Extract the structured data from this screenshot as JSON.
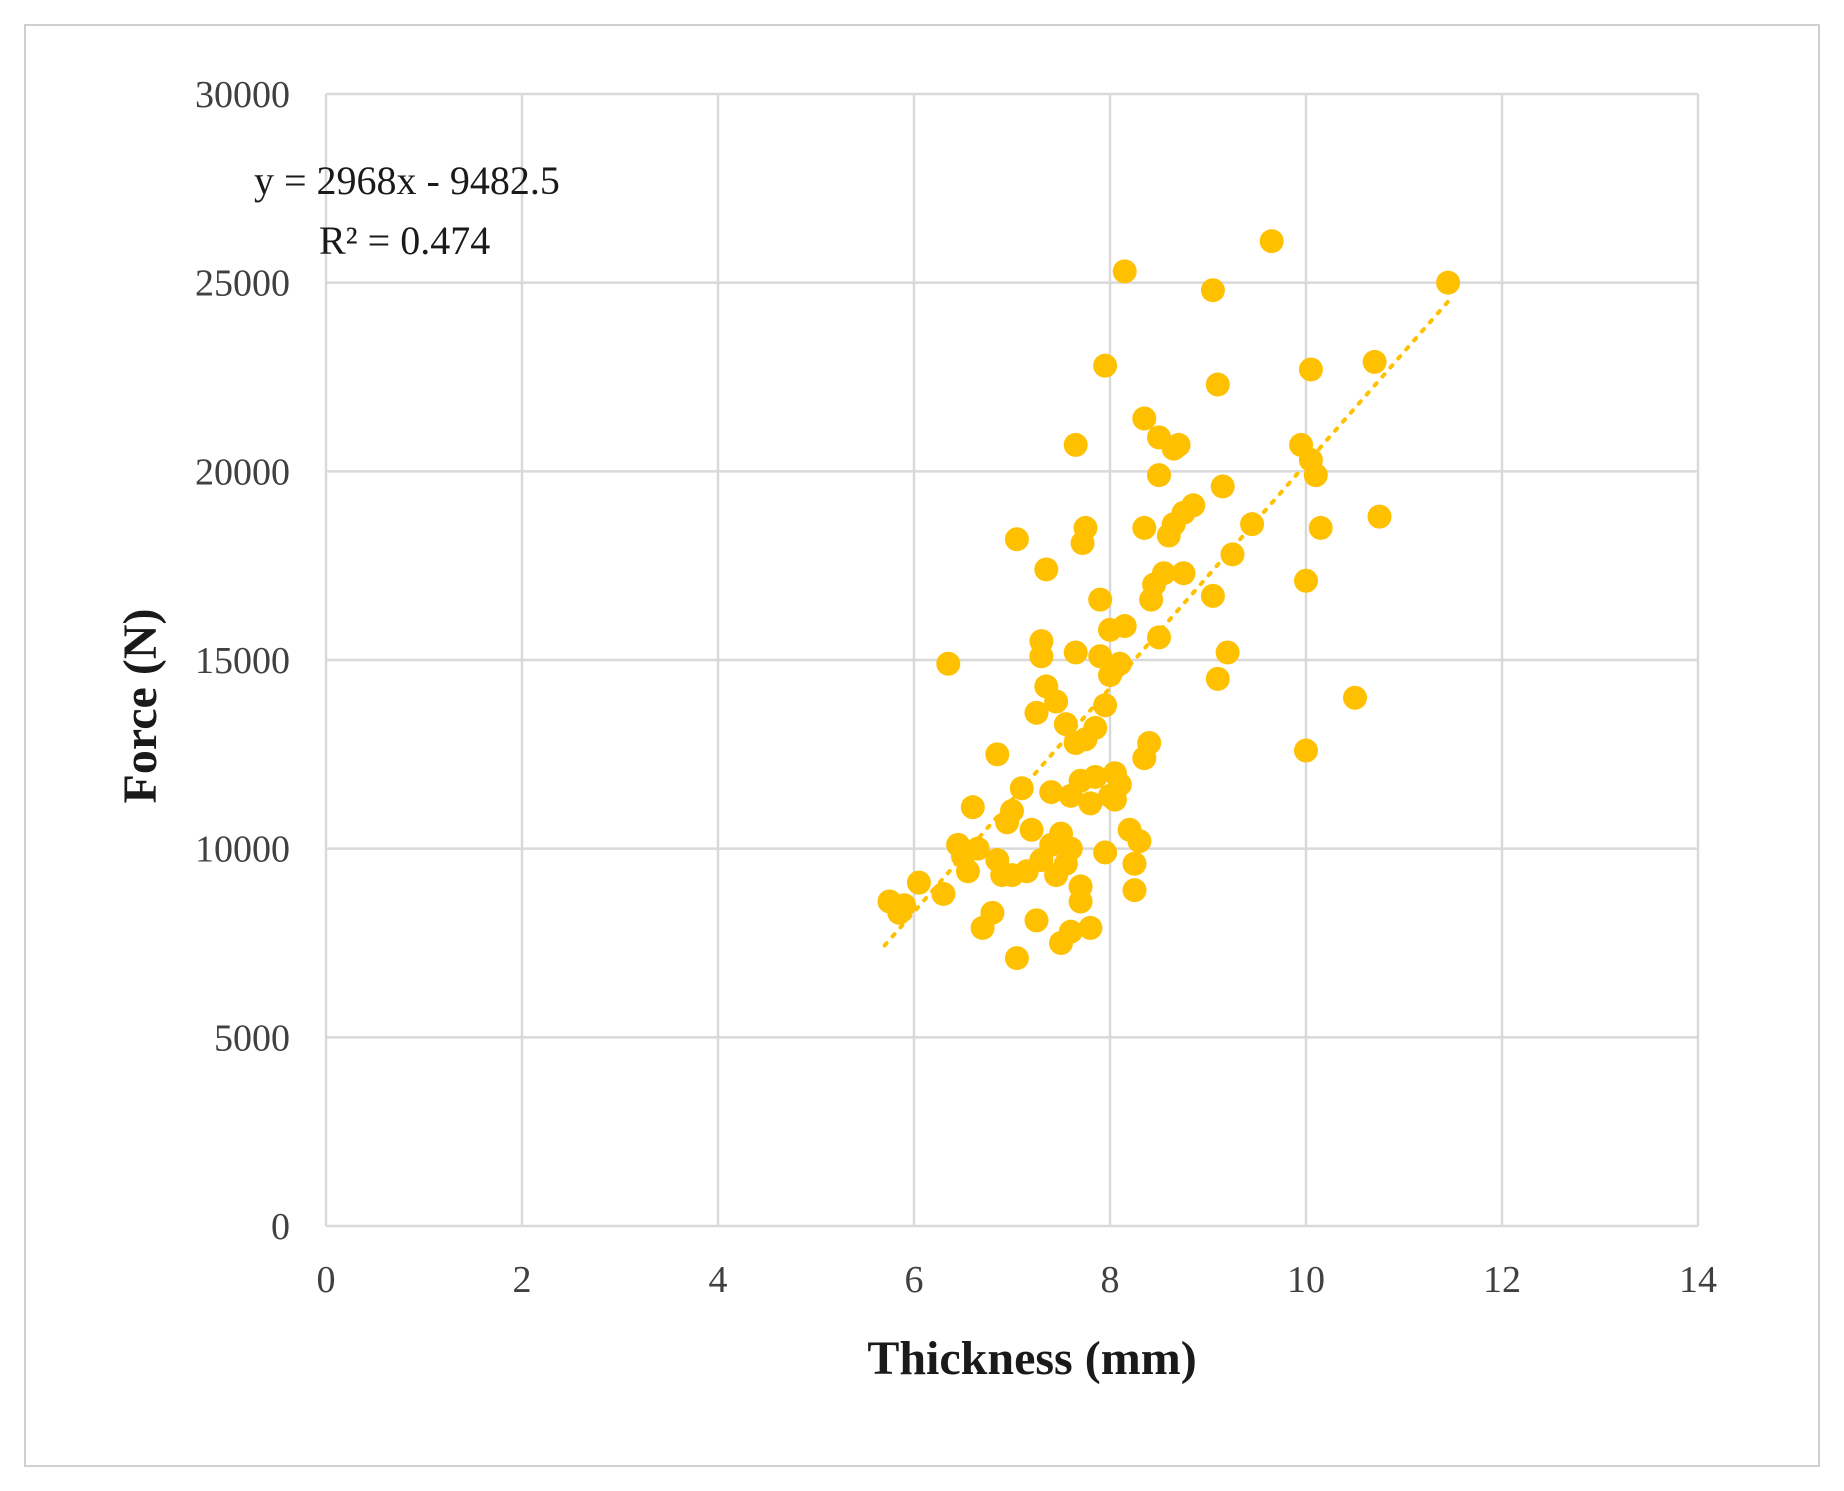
{
  "chart_data": {
    "type": "scatter",
    "title": "",
    "xlabel": "Thickness (mm)",
    "ylabel": "Force (N)",
    "xlim": [
      0,
      14
    ],
    "ylim": [
      0,
      30000
    ],
    "x_ticks": [
      "0",
      "2",
      "4",
      "6",
      "8",
      "10",
      "12",
      "14"
    ],
    "y_ticks": [
      "0",
      "5000",
      "10000",
      "15000",
      "20000",
      "25000",
      "30000"
    ],
    "grid": true,
    "marker_color": "#FFC000",
    "trendline": {
      "type": "linear",
      "slope": 2968,
      "intercept": -9482.5,
      "x_range": [
        5.7,
        11.5
      ],
      "equation_label": "y = 2968x  - 9482.5",
      "r2_label": "R² = 0.474",
      "style": "dotted"
    },
    "series": [
      {
        "points": [
          [
            5.75,
            8600
          ],
          [
            5.85,
            8300
          ],
          [
            5.9,
            8500
          ],
          [
            6.05,
            9100
          ],
          [
            6.3,
            8800
          ],
          [
            6.35,
            14900
          ],
          [
            6.45,
            10100
          ],
          [
            6.5,
            9800
          ],
          [
            6.55,
            9400
          ],
          [
            6.6,
            11100
          ],
          [
            6.65,
            10000
          ],
          [
            6.7,
            7900
          ],
          [
            6.8,
            8300
          ],
          [
            6.85,
            9700
          ],
          [
            6.85,
            12500
          ],
          [
            6.9,
            9300
          ],
          [
            6.95,
            10700
          ],
          [
            7.0,
            11000
          ],
          [
            7.0,
            9300
          ],
          [
            7.05,
            7100
          ],
          [
            7.05,
            18200
          ],
          [
            7.1,
            11600
          ],
          [
            7.15,
            9400
          ],
          [
            7.2,
            10500
          ],
          [
            7.25,
            8100
          ],
          [
            7.25,
            13600
          ],
          [
            7.3,
            9700
          ],
          [
            7.3,
            15500
          ],
          [
            7.3,
            15100
          ],
          [
            7.35,
            14300
          ],
          [
            7.35,
            17400
          ],
          [
            7.4,
            11500
          ],
          [
            7.4,
            10100
          ],
          [
            7.45,
            9300
          ],
          [
            7.45,
            13900
          ],
          [
            7.5,
            7500
          ],
          [
            7.5,
            10400
          ],
          [
            7.55,
            9600
          ],
          [
            7.55,
            13300
          ],
          [
            7.6,
            10000
          ],
          [
            7.6,
            11400
          ],
          [
            7.6,
            7800
          ],
          [
            7.65,
            20700
          ],
          [
            7.65,
            15200
          ],
          [
            7.65,
            12800
          ],
          [
            7.7,
            9000
          ],
          [
            7.7,
            11800
          ],
          [
            7.7,
            8600
          ],
          [
            7.72,
            18100
          ],
          [
            7.75,
            18500
          ],
          [
            7.75,
            12900
          ],
          [
            7.8,
            7900
          ],
          [
            7.8,
            11200
          ],
          [
            7.85,
            11900
          ],
          [
            7.85,
            13200
          ],
          [
            7.9,
            15100
          ],
          [
            7.9,
            16600
          ],
          [
            7.95,
            22800
          ],
          [
            7.95,
            13800
          ],
          [
            7.95,
            9900
          ],
          [
            8.0,
            11400
          ],
          [
            8.0,
            15800
          ],
          [
            8.0,
            14600
          ],
          [
            8.05,
            12000
          ],
          [
            8.05,
            11300
          ],
          [
            8.1,
            11700
          ],
          [
            8.1,
            14900
          ],
          [
            8.15,
            25300
          ],
          [
            8.15,
            15900
          ],
          [
            8.2,
            10500
          ],
          [
            8.25,
            9600
          ],
          [
            8.25,
            8900
          ],
          [
            8.3,
            10200
          ],
          [
            8.35,
            12400
          ],
          [
            8.35,
            18500
          ],
          [
            8.35,
            21400
          ],
          [
            8.4,
            12800
          ],
          [
            8.42,
            16600
          ],
          [
            8.45,
            17000
          ],
          [
            8.5,
            19900
          ],
          [
            8.5,
            20900
          ],
          [
            8.5,
            15600
          ],
          [
            8.55,
            17300
          ],
          [
            8.6,
            18300
          ],
          [
            8.65,
            18600
          ],
          [
            8.65,
            20600
          ],
          [
            8.7,
            20700
          ],
          [
            8.75,
            18900
          ],
          [
            8.75,
            17300
          ],
          [
            8.85,
            19100
          ],
          [
            9.05,
            16700
          ],
          [
            9.05,
            24800
          ],
          [
            9.1,
            22300
          ],
          [
            9.1,
            14500
          ],
          [
            9.15,
            19600
          ],
          [
            9.2,
            15200
          ],
          [
            9.25,
            17800
          ],
          [
            9.45,
            18600
          ],
          [
            9.65,
            26100
          ],
          [
            9.95,
            20700
          ],
          [
            10.0,
            17100
          ],
          [
            10.0,
            12600
          ],
          [
            10.05,
            22700
          ],
          [
            10.05,
            20300
          ],
          [
            10.1,
            19900
          ],
          [
            10.15,
            18500
          ],
          [
            10.5,
            14000
          ],
          [
            10.7,
            22900
          ],
          [
            10.75,
            18800
          ],
          [
            11.45,
            25000
          ]
        ]
      }
    ]
  }
}
